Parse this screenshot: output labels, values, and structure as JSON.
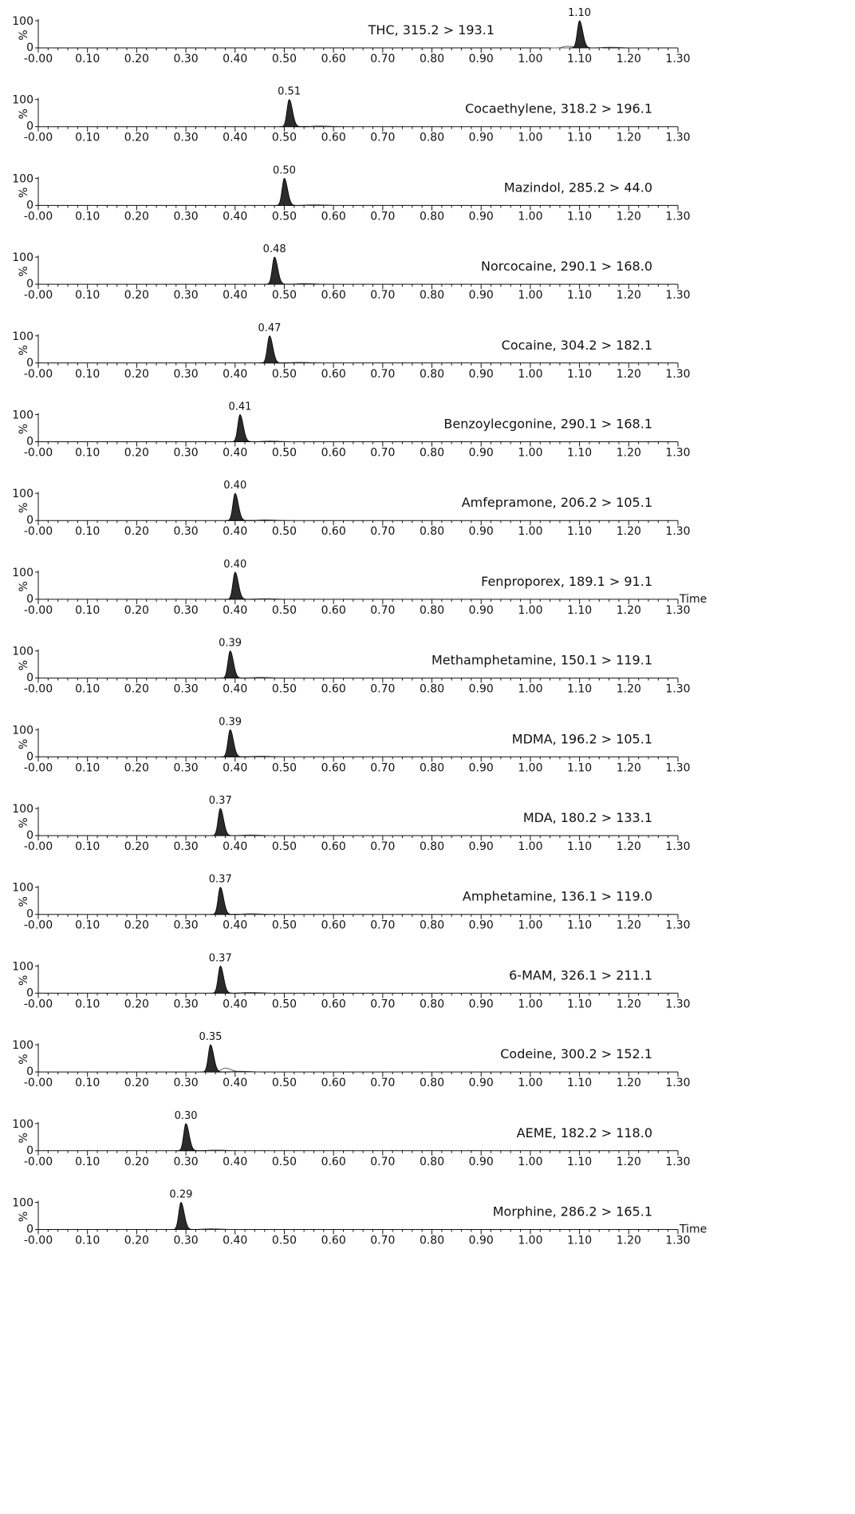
{
  "chart_data": {
    "type": "line",
    "x_ticks": [
      "-0.00",
      "0.10",
      "0.20",
      "0.30",
      "0.40",
      "0.50",
      "0.60",
      "0.70",
      "0.80",
      "0.90",
      "1.00",
      "1.10",
      "1.20",
      "1.30"
    ],
    "xlim": [
      0,
      1.3
    ],
    "ylim": [
      0,
      100
    ],
    "y_ticks": [
      "0",
      "100"
    ],
    "y_unit": "%",
    "x_axis_label": "Time",
    "panels": [
      {
        "compound": "THC, 315.2 > 193.1",
        "rt": 1.1,
        "rt_label": "1.10",
        "shoulder": {
          "x": 1.075,
          "h": 6
        },
        "time_label": false
      },
      {
        "compound": "Cocaethylene, 318.2 > 196.1",
        "rt": 0.51,
        "rt_label": "0.51",
        "time_label": false
      },
      {
        "compound": "Mazindol, 285.2 > 44.0",
        "rt": 0.5,
        "rt_label": "0.50",
        "time_label": false
      },
      {
        "compound": "Norcocaine, 290.1 > 168.0",
        "rt": 0.48,
        "rt_label": "0.48",
        "time_label": false
      },
      {
        "compound": "Cocaine, 304.2 > 182.1",
        "rt": 0.47,
        "rt_label": "0.47",
        "time_label": false
      },
      {
        "compound": "Benzoylecgonine, 290.1 > 168.1",
        "rt": 0.41,
        "rt_label": "0.41",
        "time_label": false
      },
      {
        "compound": "Amfepramone, 206.2 > 105.1",
        "rt": 0.4,
        "rt_label": "0.40",
        "time_label": false
      },
      {
        "compound": "Fenproporex, 189.1 > 91.1",
        "rt": 0.4,
        "rt_label": "0.40",
        "time_label": true
      },
      {
        "compound": "Methamphetamine, 150.1 > 119.1",
        "rt": 0.39,
        "rt_label": "0.39",
        "time_label": false
      },
      {
        "compound": "MDMA, 196.2 > 105.1",
        "rt": 0.39,
        "rt_label": "0.39",
        "time_label": false
      },
      {
        "compound": "MDA, 180.2 > 133.1",
        "rt": 0.37,
        "rt_label": "0.37",
        "time_label": false
      },
      {
        "compound": "Amphetamine, 136.1 > 119.0",
        "rt": 0.37,
        "rt_label": "0.37",
        "time_label": false
      },
      {
        "compound": "6-MAM, 326.1 > 211.1",
        "rt": 0.37,
        "rt_label": "0.37",
        "time_label": false
      },
      {
        "compound": "Codeine, 300.2 > 152.1",
        "rt": 0.35,
        "rt_label": "0.35",
        "shoulder": {
          "x": 0.38,
          "h": 14
        },
        "time_label": false
      },
      {
        "compound": "AEME, 182.2 > 118.0",
        "rt": 0.3,
        "rt_label": "0.30",
        "time_label": false
      },
      {
        "compound": "Morphine, 286.2 > 165.1",
        "rt": 0.29,
        "rt_label": "0.29",
        "time_label": true
      }
    ]
  }
}
